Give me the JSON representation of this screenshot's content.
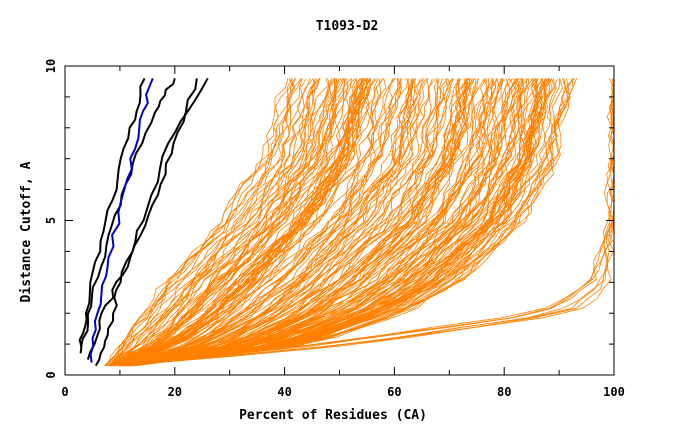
{
  "chart_data": {
    "type": "line",
    "title": "T1093-D2",
    "xlabel": "Percent of Residues (CA)",
    "ylabel": "Distance Cutoff, A",
    "xlim": [
      0,
      100
    ],
    "ylim": [
      0,
      10
    ],
    "x_ticks": [
      "0",
      "20",
      "40",
      "60",
      "80",
      "100"
    ],
    "y_ticks": [
      "0",
      "5",
      "10"
    ],
    "grid": false,
    "legend": "none",
    "colors": {
      "bulk": "#ff8000",
      "highlight_black": "#000000",
      "highlight_blue": "#0000cc"
    },
    "series_groups": [
      {
        "color": "orange",
        "count": 200,
        "x_at_cutoff": {
          "cutoff": [
            0.3,
            1,
            2,
            3,
            5,
            7,
            9.6
          ],
          "x_min": [
            8,
            10,
            14,
            18,
            28,
            36,
            40
          ],
          "x_max": [
            12,
            45,
            62,
            72,
            84,
            90,
            93
          ]
        }
      },
      {
        "color": "orange",
        "count": 8,
        "description": "near-complete models",
        "x_at_cutoff": {
          "cutoff": [
            0.3,
            1,
            2,
            3,
            5,
            7,
            9.6
          ],
          "x_min": [
            8,
            45,
            85,
            96,
            99,
            100,
            100
          ],
          "x_max": [
            10,
            55,
            92,
            99,
            100,
            100,
            100
          ]
        }
      },
      {
        "color": "black",
        "count": 4,
        "points": [
          [
            [
              2.5,
              0.7
            ],
            [
              4,
              2
            ],
            [
              6,
              4
            ],
            [
              9,
              6
            ],
            [
              12,
              8
            ],
            [
              14.5,
              9.6
            ]
          ],
          [
            [
              3,
              0.9
            ],
            [
              5,
              2.5
            ],
            [
              8,
              4.5
            ],
            [
              12,
              6.5
            ],
            [
              16,
              8.5
            ],
            [
              20,
              9.6
            ]
          ],
          [
            [
              6,
              0.3
            ],
            [
              8,
              1.5
            ],
            [
              10,
              3
            ],
            [
              14,
              5
            ],
            [
              19,
              7.5
            ],
            [
              26,
              9.6
            ]
          ],
          [
            [
              4,
              0.5
            ],
            [
              7,
              2
            ],
            [
              11,
              3.5
            ],
            [
              16,
              5.5
            ],
            [
              20,
              7.5
            ],
            [
              24,
              9.6
            ]
          ]
        ]
      },
      {
        "color": "blue",
        "count": 1,
        "points": [
          [
            [
              4.5,
              0.4
            ],
            [
              6,
              2
            ],
            [
              8,
              3.8
            ],
            [
              11,
              6
            ],
            [
              13.5,
              8
            ],
            [
              16,
              9.6
            ]
          ]
        ]
      }
    ]
  }
}
